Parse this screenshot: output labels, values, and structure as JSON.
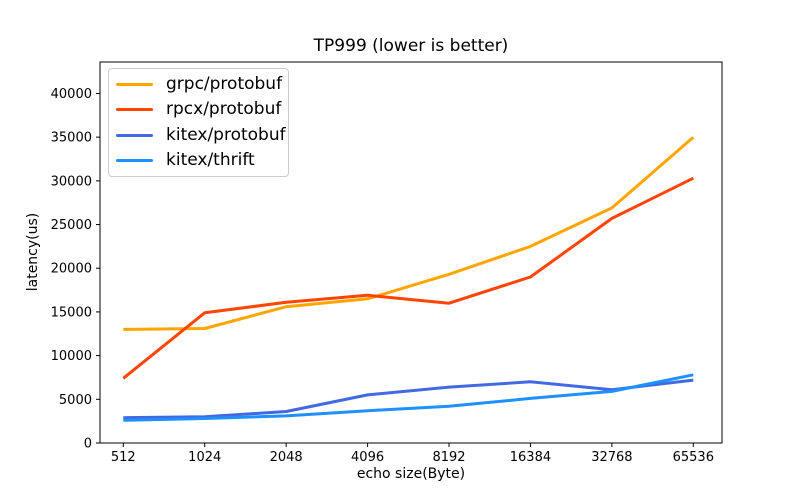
{
  "figure": {
    "background_color": "#ffffff",
    "text_color": "#000000",
    "axis_color": "#000000",
    "legend_border_color": "#cccccc"
  },
  "chart_data": {
    "type": "line",
    "title": "TP999 (lower is better)",
    "xlabel": "echo size(Byte)",
    "ylabel": "latency(us)",
    "categories": [
      "512",
      "1024",
      "2048",
      "4096",
      "8192",
      "16384",
      "32768",
      "65536"
    ],
    "series": [
      {
        "name": "grpc/protobuf",
        "color": "#FFA500",
        "values": [
          13000,
          13100,
          15600,
          16500,
          19300,
          22500,
          26900,
          35000
        ]
      },
      {
        "name": "rpcx/protobuf",
        "color": "#FF4500",
        "values": [
          7400,
          14900,
          16100,
          16900,
          16000,
          19000,
          25700,
          30300
        ]
      },
      {
        "name": "kitex/protobuf",
        "color": "#4169E1",
        "values": [
          2900,
          3000,
          3600,
          5500,
          6400,
          7000,
          6100,
          7200
        ]
      },
      {
        "name": "kitex/thrift",
        "color": "#1E90FF",
        "values": [
          2600,
          2800,
          3100,
          3700,
          4200,
          5100,
          5900,
          7800
        ]
      }
    ],
    "yticks": [
      0,
      5000,
      10000,
      15000,
      20000,
      25000,
      30000,
      35000,
      40000
    ],
    "ylim": [
      0,
      43600
    ],
    "grid": false,
    "legend_position": "upper-left",
    "line_width": 3
  }
}
